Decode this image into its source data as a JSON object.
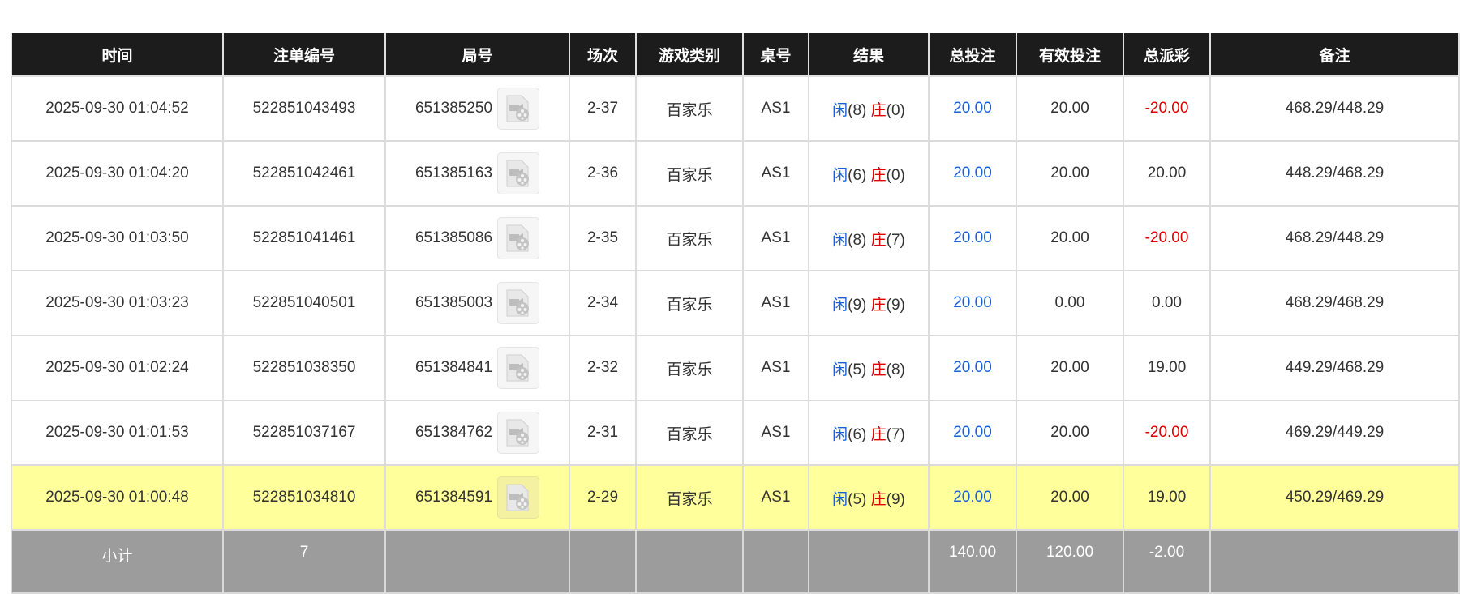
{
  "headers": [
    "时间",
    "注单编号",
    "局号",
    "场次",
    "游戏类别",
    "桌号",
    "结果",
    "总投注",
    "有效投注",
    "总派彩",
    "备注"
  ],
  "colors": {
    "player": "#1a5fd8",
    "banker": "#e00000",
    "negative": "#e00000",
    "highlight_row": "#ffff9c",
    "header_bg": "#1c1c1c",
    "subtotal_bg": "#9c9c9c"
  },
  "rows": [
    {
      "time": "2025-09-30 01:04:52",
      "bet_id": "522851043493",
      "round": "651385250",
      "shoe": "2-37",
      "game": "百家乐",
      "table": "AS1",
      "player_label": "闲",
      "player": "(8)",
      "banker_label": "庄",
      "banker": "(0)",
      "total_bet": "20.00",
      "valid_bet": "20.00",
      "payout": "-20.00",
      "payout_negative": true,
      "note": "468.29/448.29",
      "highlighted": false
    },
    {
      "time": "2025-09-30 01:04:20",
      "bet_id": "522851042461",
      "round": "651385163",
      "shoe": "2-36",
      "game": "百家乐",
      "table": "AS1",
      "player_label": "闲",
      "player": "(6)",
      "banker_label": "庄",
      "banker": "(0)",
      "total_bet": "20.00",
      "valid_bet": "20.00",
      "payout": "20.00",
      "payout_negative": false,
      "note": "448.29/468.29",
      "highlighted": false
    },
    {
      "time": "2025-09-30 01:03:50",
      "bet_id": "522851041461",
      "round": "651385086",
      "shoe": "2-35",
      "game": "百家乐",
      "table": "AS1",
      "player_label": "闲",
      "player": "(8)",
      "banker_label": "庄",
      "banker": "(7)",
      "total_bet": "20.00",
      "valid_bet": "20.00",
      "payout": "-20.00",
      "payout_negative": true,
      "note": "468.29/448.29",
      "highlighted": false
    },
    {
      "time": "2025-09-30 01:03:23",
      "bet_id": "522851040501",
      "round": "651385003",
      "shoe": "2-34",
      "game": "百家乐",
      "table": "AS1",
      "player_label": "闲",
      "player": "(9)",
      "banker_label": "庄",
      "banker": "(9)",
      "total_bet": "20.00",
      "valid_bet": "0.00",
      "payout": "0.00",
      "payout_negative": false,
      "note": "468.29/468.29",
      "highlighted": false
    },
    {
      "time": "2025-09-30 01:02:24",
      "bet_id": "522851038350",
      "round": "651384841",
      "shoe": "2-32",
      "game": "百家乐",
      "table": "AS1",
      "player_label": "闲",
      "player": "(5)",
      "banker_label": "庄",
      "banker": "(8)",
      "total_bet": "20.00",
      "valid_bet": "20.00",
      "payout": "19.00",
      "payout_negative": false,
      "note": "449.29/468.29",
      "highlighted": false
    },
    {
      "time": "2025-09-30 01:01:53",
      "bet_id": "522851037167",
      "round": "651384762",
      "shoe": "2-31",
      "game": "百家乐",
      "table": "AS1",
      "player_label": "闲",
      "player": "(6)",
      "banker_label": "庄",
      "banker": "(7)",
      "total_bet": "20.00",
      "valid_bet": "20.00",
      "payout": "-20.00",
      "payout_negative": true,
      "note": "469.29/449.29",
      "highlighted": false
    },
    {
      "time": "2025-09-30 01:00:48",
      "bet_id": "522851034810",
      "round": "651384591",
      "shoe": "2-29",
      "game": "百家乐",
      "table": "AS1",
      "player_label": "闲",
      "player": "(5)",
      "banker_label": "庄",
      "banker": "(9)",
      "total_bet": "20.00",
      "valid_bet": "20.00",
      "payout": "19.00",
      "payout_negative": false,
      "note": "450.29/469.29",
      "highlighted": true
    }
  ],
  "subtotal": {
    "label": "小计",
    "count": "7",
    "total_bet": "140.00",
    "valid_bet": "120.00",
    "payout": "-2.00"
  }
}
